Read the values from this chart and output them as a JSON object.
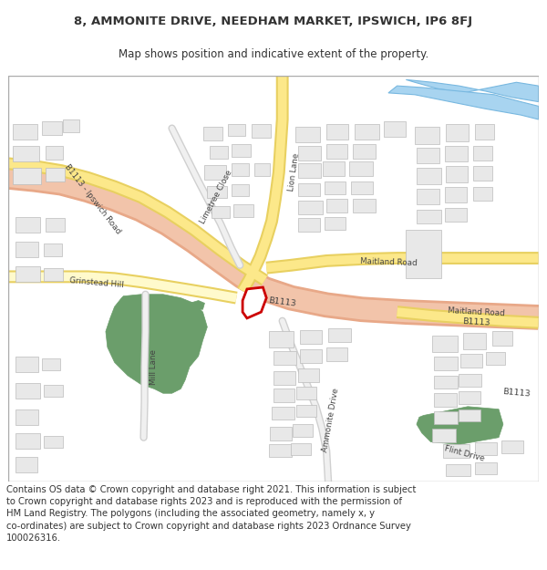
{
  "title_line1": "8, AMMONITE DRIVE, NEEDHAM MARKET, IPSWICH, IP6 8FJ",
  "title_line2": "Map shows position and indicative extent of the property.",
  "footer": "Contains OS data © Crown copyright and database right 2021. This information is subject\nto Crown copyright and database rights 2023 and is reproduced with the permission of\nHM Land Registry. The polygons (including the associated geometry, namely x, y\nco-ordinates) are subject to Crown copyright and database rights 2023 Ordnance Survey\n100026316.",
  "map_bg": "#f5f5f0",
  "road_main_color": "#f2c4aa",
  "road_main_outline": "#e8a888",
  "road_minor_color": "#fce88a",
  "road_minor_outline": "#e8d060",
  "road_minor_fill": "#fffacc",
  "building_color": "#e8e8e8",
  "building_outline": "#bbbbbb",
  "green_color": "#6b9e6b",
  "water_color": "#a8d4f0",
  "water_outline": "#78b8e0",
  "highlight_color": "#cc0000",
  "text_color": "#333333",
  "road_label_color": "#444444"
}
